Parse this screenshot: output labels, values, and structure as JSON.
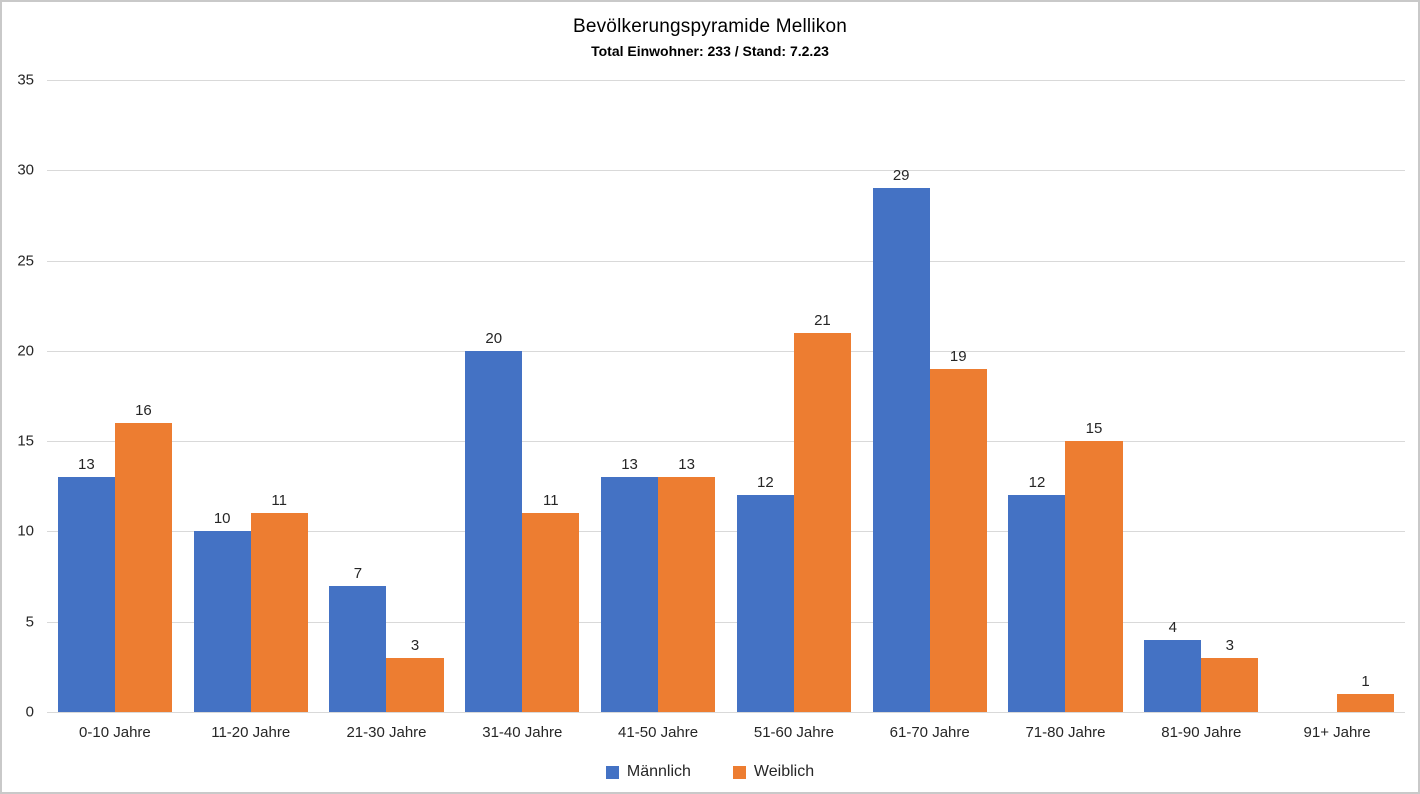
{
  "chart_data": {
    "type": "bar",
    "title": "Bevölkerungspyramide Mellikon",
    "subtitle": "Total Einwohner: 233 / Stand: 7.2.23",
    "categories": [
      "0-10 Jahre",
      "11-20 Jahre",
      "21-30 Jahre",
      "31-40 Jahre",
      "41-50 Jahre",
      "51-60 Jahre",
      "61-70 Jahre",
      "71-80 Jahre",
      "81-90 Jahre",
      "91+ Jahre"
    ],
    "series": [
      {
        "name": "Männlich",
        "color": "#4472C4",
        "values": [
          13,
          10,
          7,
          20,
          13,
          12,
          29,
          12,
          4,
          0
        ]
      },
      {
        "name": "Weiblich",
        "color": "#ED7D31",
        "values": [
          16,
          11,
          3,
          11,
          13,
          21,
          19,
          15,
          3,
          1
        ]
      }
    ],
    "ylim": [
      0,
      35
    ],
    "yticks": [
      0,
      5,
      10,
      15,
      20,
      25,
      30,
      35
    ],
    "grid": true,
    "gridline_color": "#D9D9D9",
    "data_labels": true,
    "legend_position": "bottom",
    "xlabel": "",
    "ylabel": ""
  }
}
